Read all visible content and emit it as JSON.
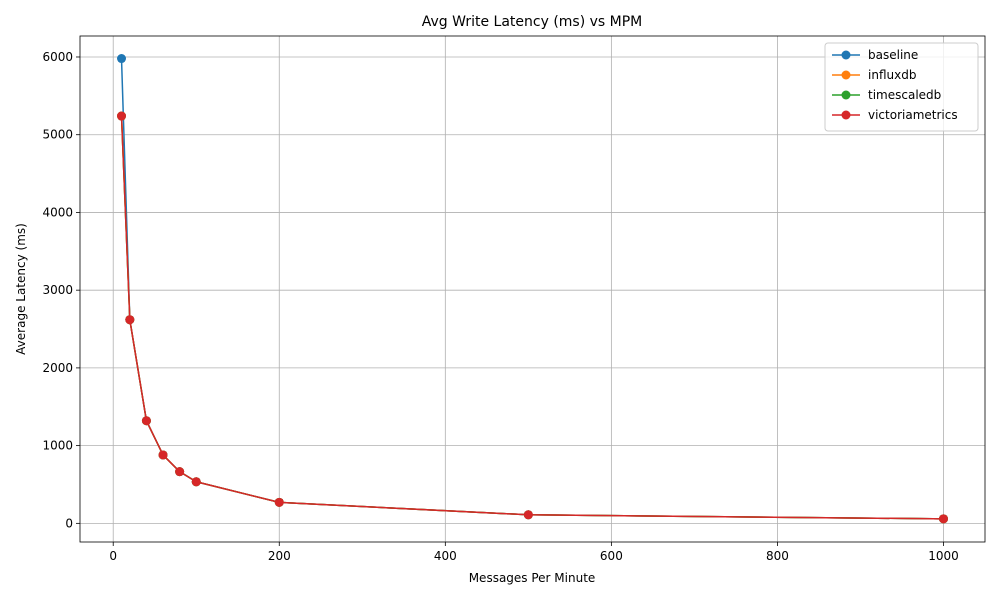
{
  "chart_data": {
    "type": "line",
    "title": "Avg Write Latency (ms) vs MPM",
    "xlabel": "Messages Per Minute",
    "ylabel": "Average Latency (ms)",
    "xlim": [
      -40,
      1050
    ],
    "ylim": [
      -240,
      6270
    ],
    "xticks": [
      0,
      200,
      400,
      600,
      800,
      1000
    ],
    "yticks": [
      0,
      1000,
      2000,
      3000,
      4000,
      5000,
      6000
    ],
    "grid": true,
    "legend_position": "top-right",
    "markers": true,
    "x": [
      10,
      20,
      40,
      60,
      80,
      100,
      200,
      500,
      1000
    ],
    "series": [
      {
        "name": "baseline",
        "color": "#1f77b4",
        "values": [
          5980,
          2620,
          1320,
          880,
          665,
          535,
          270,
          110,
          58
        ]
      },
      {
        "name": "influxdb",
        "color": "#ff7f0e",
        "values": [
          5240,
          2620,
          1320,
          880,
          665,
          535,
          270,
          110,
          58
        ]
      },
      {
        "name": "timescaledb",
        "color": "#2ca02c",
        "values": [
          5240,
          2620,
          1320,
          880,
          665,
          535,
          270,
          110,
          58
        ]
      },
      {
        "name": "victoriametrics",
        "color": "#d62728",
        "values": [
          5240,
          2620,
          1320,
          880,
          665,
          535,
          270,
          110,
          58
        ]
      }
    ]
  }
}
